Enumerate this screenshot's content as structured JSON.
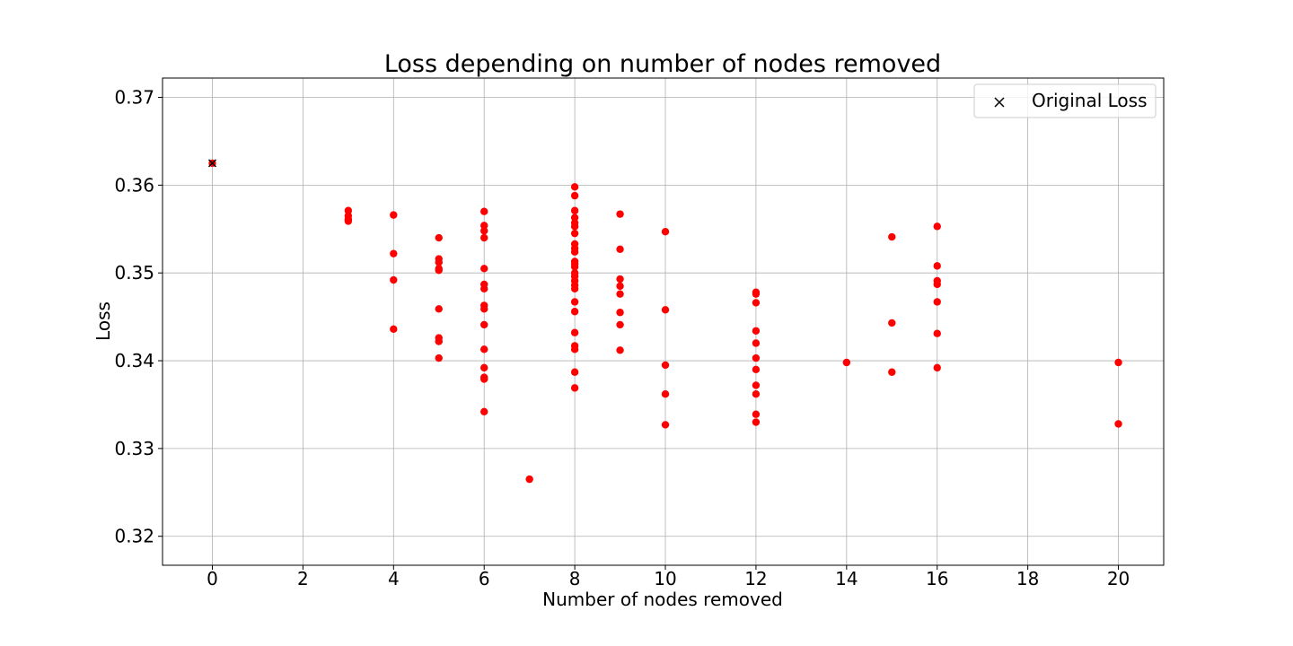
{
  "chart_data": {
    "type": "scatter",
    "title": "Loss depending on number of nodes removed",
    "xlabel": "Number of nodes removed",
    "ylabel": "Loss",
    "xlim": [
      -1.1,
      21.0
    ],
    "ylim": [
      0.3167,
      0.3722
    ],
    "xticks": [
      0,
      2,
      4,
      6,
      8,
      10,
      12,
      14,
      16,
      18,
      20
    ],
    "xtick_labels": [
      "0",
      "2",
      "4",
      "6",
      "8",
      "10",
      "12",
      "14",
      "16",
      "18",
      "20"
    ],
    "yticks": [
      0.32,
      0.33,
      0.34,
      0.35,
      0.36,
      0.37
    ],
    "ytick_labels": [
      "0.32",
      "0.33",
      "0.34",
      "0.35",
      "0.36",
      "0.37"
    ],
    "grid": true,
    "legend": {
      "placement": "top-right",
      "entries": [
        {
          "label": "Original Loss",
          "marker": "x",
          "color": "#000000"
        }
      ]
    },
    "colors": {
      "points": "#ff0000",
      "original_marker": "#000000",
      "grid": "#b0b0b0"
    },
    "original_loss": {
      "x": 0,
      "y": 0.3625
    },
    "series": [
      {
        "marker": "circle",
        "color": "#ff0000",
        "points": [
          [
            0,
            0.3625
          ],
          [
            3,
            0.3571
          ],
          [
            3,
            0.3565
          ],
          [
            3,
            0.3561
          ],
          [
            3,
            0.3559
          ],
          [
            4,
            0.3566
          ],
          [
            4,
            0.3522
          ],
          [
            4,
            0.3492
          ],
          [
            4,
            0.3436
          ],
          [
            5,
            0.354
          ],
          [
            5,
            0.3516
          ],
          [
            5,
            0.3512
          ],
          [
            5,
            0.3505
          ],
          [
            5,
            0.3503
          ],
          [
            5,
            0.3459
          ],
          [
            5,
            0.3426
          ],
          [
            5,
            0.3422
          ],
          [
            5,
            0.3403
          ],
          [
            6,
            0.357
          ],
          [
            6,
            0.3554
          ],
          [
            6,
            0.3548
          ],
          [
            6,
            0.354
          ],
          [
            6,
            0.3505
          ],
          [
            6,
            0.3487
          ],
          [
            6,
            0.3482
          ],
          [
            6,
            0.3463
          ],
          [
            6,
            0.3459
          ],
          [
            6,
            0.3441
          ],
          [
            6,
            0.3413
          ],
          [
            6,
            0.3392
          ],
          [
            6,
            0.3381
          ],
          [
            6,
            0.3379
          ],
          [
            6,
            0.3342
          ],
          [
            7,
            0.3265
          ],
          [
            8,
            0.3598
          ],
          [
            8,
            0.3588
          ],
          [
            8,
            0.3571
          ],
          [
            8,
            0.3563
          ],
          [
            8,
            0.3557
          ],
          [
            8,
            0.3553
          ],
          [
            8,
            0.3545
          ],
          [
            8,
            0.3533
          ],
          [
            8,
            0.3528
          ],
          [
            8,
            0.3524
          ],
          [
            8,
            0.3513
          ],
          [
            8,
            0.351
          ],
          [
            8,
            0.3507
          ],
          [
            8,
            0.35
          ],
          [
            8,
            0.3496
          ],
          [
            8,
            0.3491
          ],
          [
            8,
            0.3486
          ],
          [
            8,
            0.3482
          ],
          [
            8,
            0.3467
          ],
          [
            8,
            0.3456
          ],
          [
            8,
            0.3432
          ],
          [
            8,
            0.3417
          ],
          [
            8,
            0.3413
          ],
          [
            8,
            0.3387
          ],
          [
            8,
            0.3369
          ],
          [
            9,
            0.3567
          ],
          [
            9,
            0.3527
          ],
          [
            9,
            0.3493
          ],
          [
            9,
            0.3485
          ],
          [
            9,
            0.3476
          ],
          [
            9,
            0.3455
          ],
          [
            9,
            0.3441
          ],
          [
            9,
            0.3412
          ],
          [
            10,
            0.3547
          ],
          [
            10,
            0.3458
          ],
          [
            10,
            0.3395
          ],
          [
            10,
            0.3362
          ],
          [
            10,
            0.3327
          ],
          [
            12,
            0.3478
          ],
          [
            12,
            0.3476
          ],
          [
            12,
            0.3466
          ],
          [
            12,
            0.3434
          ],
          [
            12,
            0.342
          ],
          [
            12,
            0.3403
          ],
          [
            12,
            0.339
          ],
          [
            12,
            0.3372
          ],
          [
            12,
            0.3362
          ],
          [
            12,
            0.3339
          ],
          [
            12,
            0.333
          ],
          [
            14,
            0.3398
          ],
          [
            15,
            0.3541
          ],
          [
            15,
            0.3443
          ],
          [
            15,
            0.3387
          ],
          [
            16,
            0.3553
          ],
          [
            16,
            0.3508
          ],
          [
            16,
            0.3491
          ],
          [
            16,
            0.3487
          ],
          [
            16,
            0.3467
          ],
          [
            16,
            0.3431
          ],
          [
            16,
            0.3392
          ],
          [
            20,
            0.3398
          ],
          [
            20,
            0.3328
          ]
        ]
      }
    ]
  }
}
